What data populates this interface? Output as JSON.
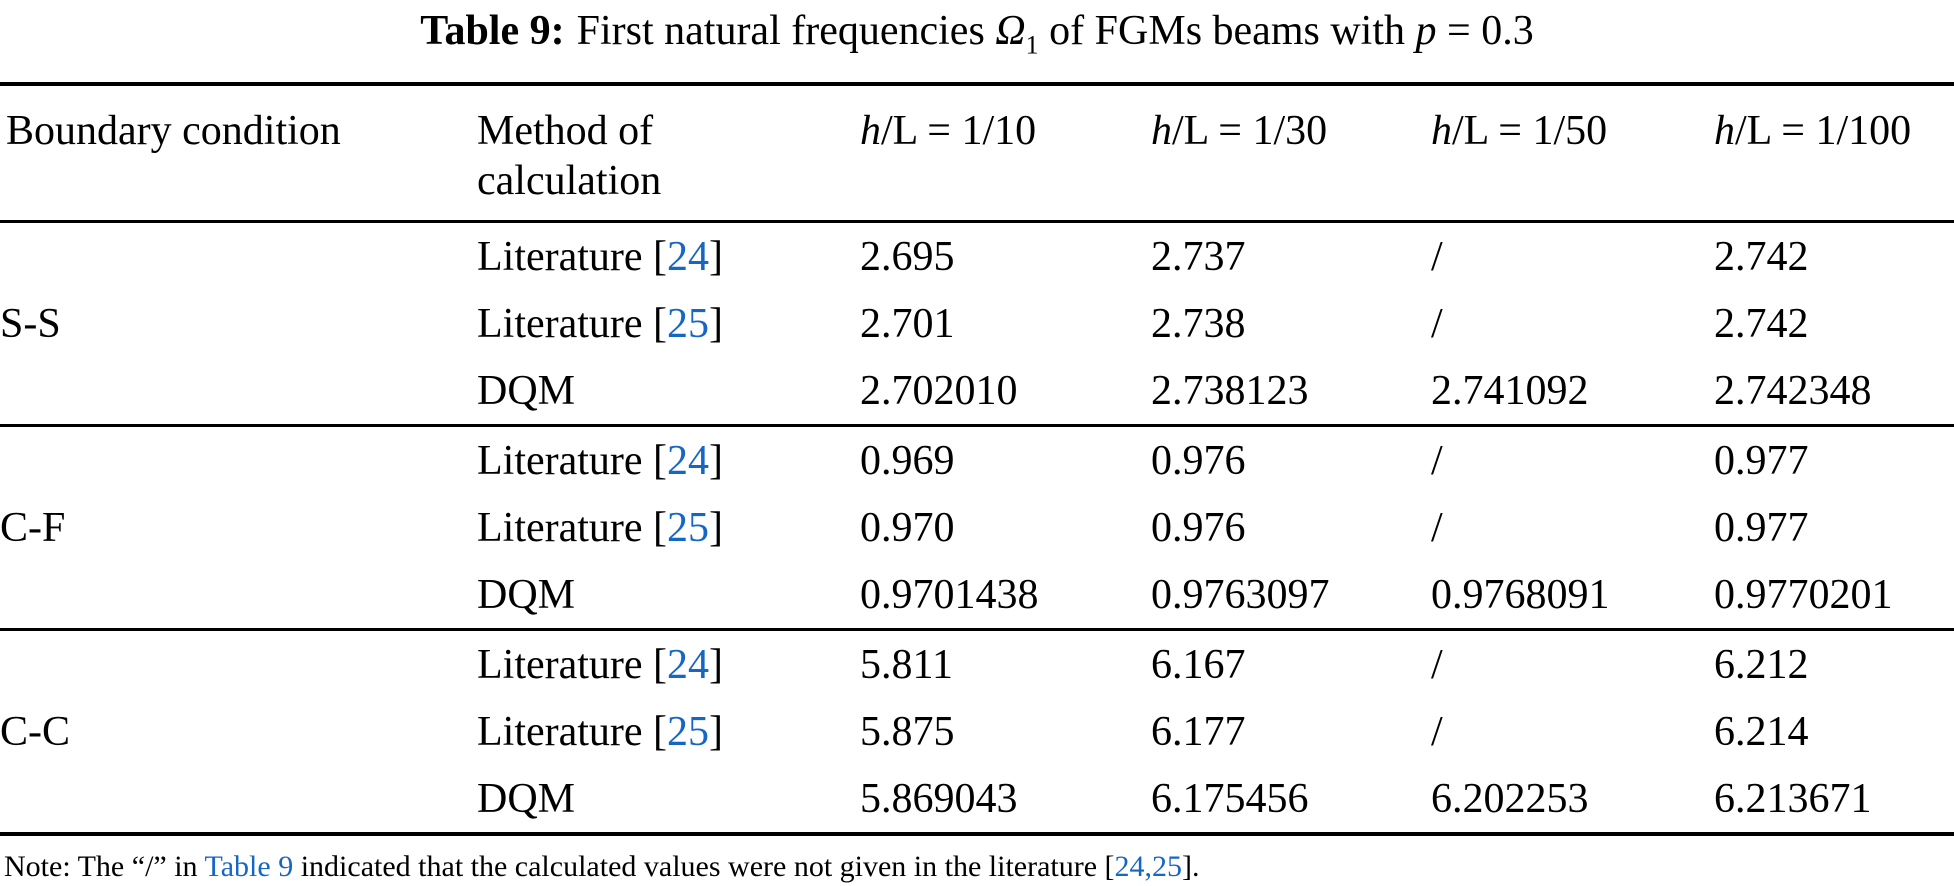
{
  "link_color": "#1666C4",
  "title": {
    "bold": "Table 9:",
    "part1": "First natural frequencies ",
    "omega": "Ω",
    "omega_sub": "1",
    "part2": " of FGMs beams with ",
    "p_var": "p",
    "part3": " = 0.3"
  },
  "header": {
    "boundary": "Boundary condition",
    "method_line1": "Method of",
    "method_line2": "calculation",
    "hl_cols": [
      {
        "var": "h",
        "rest": "/L = 1/10"
      },
      {
        "var": "h",
        "rest": "/L = 1/30"
      },
      {
        "var": "h",
        "rest": "/L = 1/50"
      },
      {
        "var": "h",
        "rest": "/L = 1/100"
      }
    ]
  },
  "sections": [
    {
      "boundary": "S-S",
      "rows": [
        {
          "pre": "Literature [",
          "ref": "24",
          "post": "]",
          "values": [
            "2.695",
            "2.737",
            "/",
            "2.742"
          ]
        },
        {
          "pre": "Literature [",
          "ref": "25",
          "post": "]",
          "values": [
            "2.701",
            "2.738",
            "/",
            "2.742"
          ]
        },
        {
          "pre": "DQM",
          "ref": "",
          "post": "",
          "values": [
            "2.702010",
            "2.738123",
            "2.741092",
            "2.742348"
          ]
        }
      ]
    },
    {
      "boundary": "C-F",
      "rows": [
        {
          "pre": "Literature [",
          "ref": "24",
          "post": "]",
          "values": [
            "0.969",
            "0.976",
            "/",
            "0.977"
          ]
        },
        {
          "pre": "Literature [",
          "ref": "25",
          "post": "]",
          "values": [
            "0.970",
            "0.976",
            "/",
            "0.977"
          ]
        },
        {
          "pre": "DQM",
          "ref": "",
          "post": "",
          "values": [
            "0.9701438",
            "0.9763097",
            "0.9768091",
            "0.9770201"
          ]
        }
      ]
    },
    {
      "boundary": "C-C",
      "rows": [
        {
          "pre": "Literature [",
          "ref": "24",
          "post": "]",
          "values": [
            "5.811",
            "6.167",
            "/",
            "6.212"
          ]
        },
        {
          "pre": "Literature [",
          "ref": "25",
          "post": "]",
          "values": [
            "5.875",
            "6.177",
            "/",
            "6.214"
          ]
        },
        {
          "pre": "DQM",
          "ref": "",
          "post": "",
          "values": [
            "5.869043",
            "6.175456",
            "6.202253",
            "6.213671"
          ]
        }
      ]
    }
  ],
  "note": {
    "prefix": "Note: The “/” in ",
    "link1": "Table 9",
    "middle": " indicated that the calculated values were not given in the literature [",
    "link2": "24,25",
    "suffix": "]."
  }
}
